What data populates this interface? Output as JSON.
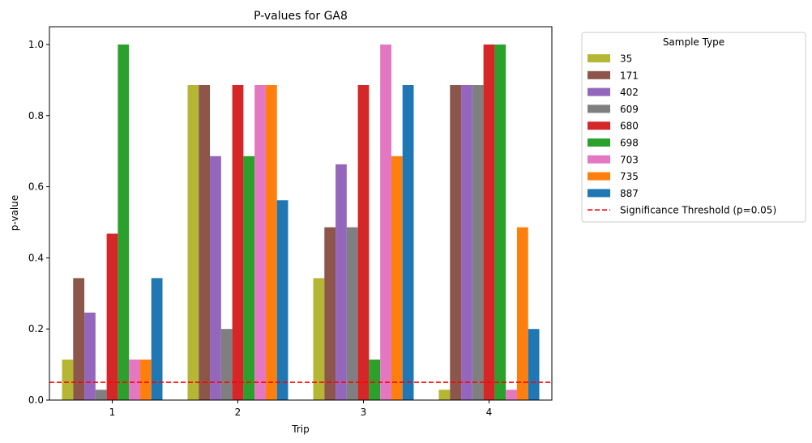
{
  "chart_data": {
    "type": "bar",
    "title": "P-values for GA8",
    "xlabel": "Trip",
    "ylabel": "p-value",
    "ylim": [
      0,
      1.05
    ],
    "yticks": [
      0.0,
      0.2,
      0.4,
      0.6,
      0.8,
      1.0
    ],
    "ytick_labels": [
      "0.0",
      "0.2",
      "0.4",
      "0.6",
      "0.8",
      "1.0"
    ],
    "categories": [
      "1",
      "2",
      "3",
      "4"
    ],
    "grid": false,
    "legend": {
      "title": "Sample Type",
      "placement": "outside right, top"
    },
    "series": [
      {
        "name": "35",
        "color": "#b5b634",
        "values": [
          0.114,
          0.886,
          0.343,
          0.029
        ]
      },
      {
        "name": "171",
        "color": "#8c564b",
        "values": [
          0.343,
          0.886,
          0.486,
          0.886
        ]
      },
      {
        "name": "402",
        "color": "#9467bd",
        "values": [
          0.246,
          0.686,
          0.663,
          0.886
        ]
      },
      {
        "name": "609",
        "color": "#7f7f7f",
        "values": [
          0.029,
          0.2,
          0.486,
          0.886
        ]
      },
      {
        "name": "680",
        "color": "#d62728",
        "values": [
          0.468,
          0.886,
          0.886,
          1.0
        ]
      },
      {
        "name": "698",
        "color": "#2ca02c",
        "values": [
          1.0,
          0.686,
          0.114,
          1.0
        ]
      },
      {
        "name": "703",
        "color": "#e377c2",
        "values": [
          0.114,
          0.886,
          1.0,
          0.029
        ]
      },
      {
        "name": "735",
        "color": "#ff7f0e",
        "values": [
          0.114,
          0.886,
          0.686,
          0.486
        ]
      },
      {
        "name": "887",
        "color": "#1f77b4",
        "values": [
          0.343,
          0.562,
          0.886,
          0.2
        ]
      }
    ],
    "threshold": {
      "value": 0.05,
      "label": "Significance Threshold (p=0.05)",
      "color": "#ff0000",
      "style": "dashed"
    }
  }
}
